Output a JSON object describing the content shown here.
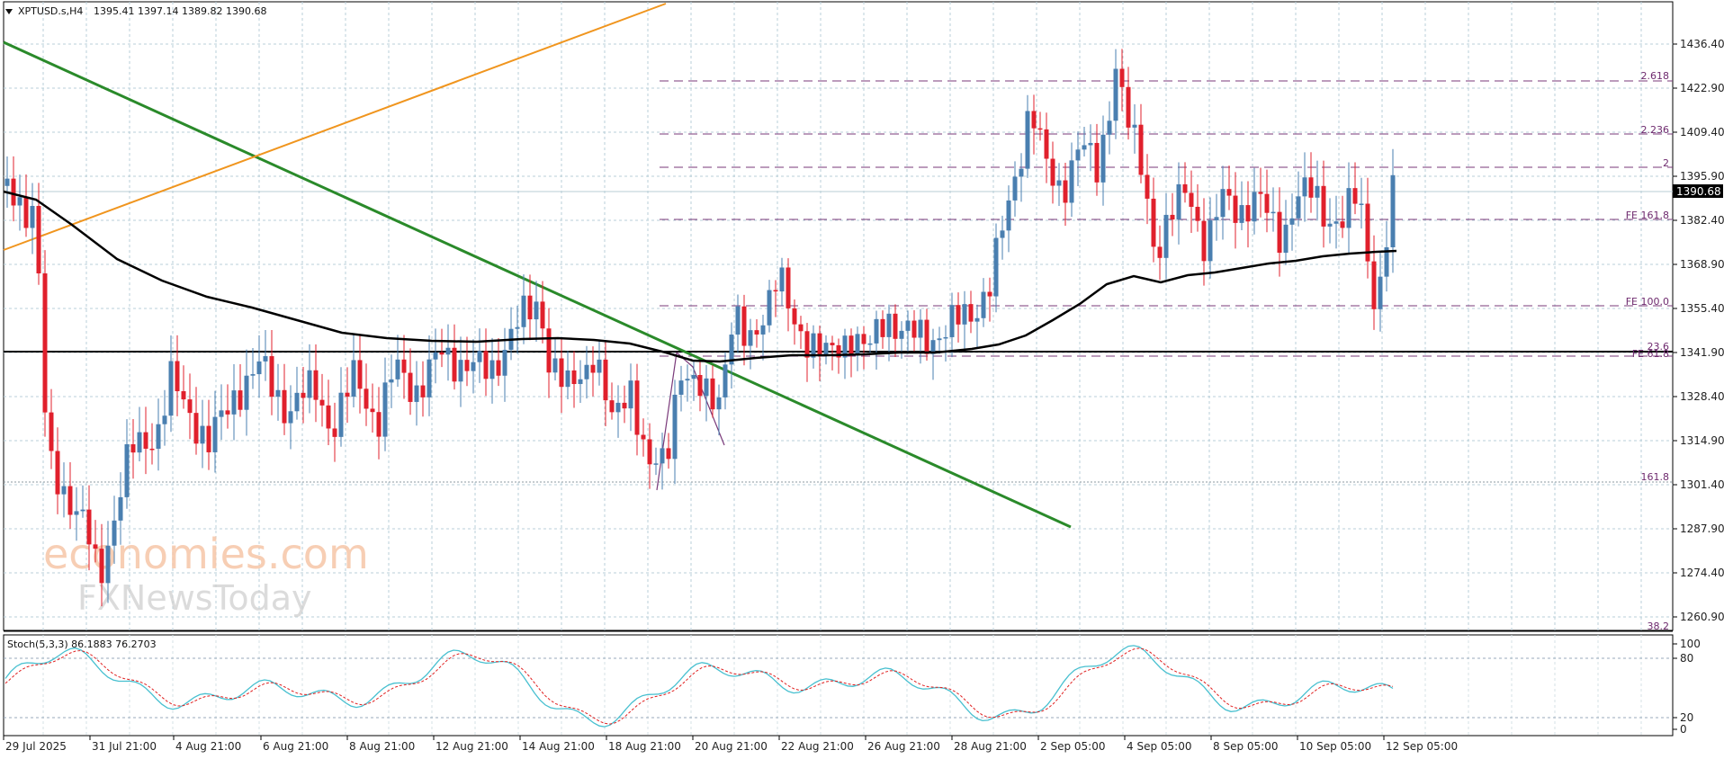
{
  "header": {
    "symbol": "XPTUSD.s,H4",
    "ohlc": "1395.41 1397.14 1389.82 1390.68"
  },
  "price_axis": {
    "ticks": [
      "1436.40",
      "1422.90",
      "1409.40",
      "1395.90",
      "1382.40",
      "1368.90",
      "1355.40",
      "1341.90",
      "1328.40",
      "1314.90",
      "1301.40",
      "1287.90",
      "1274.40",
      "1260.90"
    ],
    "current_price": "1390.68"
  },
  "fib_labels": {
    "l2618": "2.618",
    "l2236": "2.236",
    "l2": "2",
    "fe1618": "FE 161.8",
    "fe100": "FE 100.0",
    "r236": "23.6",
    "fe618": "FE 61.8",
    "r1618": "161.8",
    "r382": "38.2"
  },
  "stoch": {
    "label": "Stoch(5,3,3) 86.1883 76.2703",
    "ticks": [
      "100",
      "80",
      "20",
      "0"
    ]
  },
  "time_axis": {
    "ticks": [
      "29 Jul 2025",
      "31 Jul 21:00",
      "4 Aug 21:00",
      "6 Aug 21:00",
      "8 Aug 21:00",
      "12 Aug 21:00",
      "14 Aug 21:00",
      "18 Aug 21:00",
      "20 Aug 21:00",
      "22 Aug 21:00",
      "26 Aug 21:00",
      "28 Aug 21:00",
      "2 Sep 05:00",
      "4 Sep 05:00",
      "8 Sep 05:00",
      "10 Sep 05:00",
      "12 Sep 05:00"
    ]
  },
  "watermark": {
    "line1": "economies.com",
    "line2": "FXNewsToday"
  },
  "colors": {
    "bull": "#4a7fb0",
    "bear": "#e0202c",
    "ma": "#000000",
    "trend_down": "#2a8a2a",
    "trend_up": "#f0951e",
    "fib": "#7a3a7a",
    "stoch_main": "#48c0d0",
    "stoch_signal": "#e02020"
  }
}
